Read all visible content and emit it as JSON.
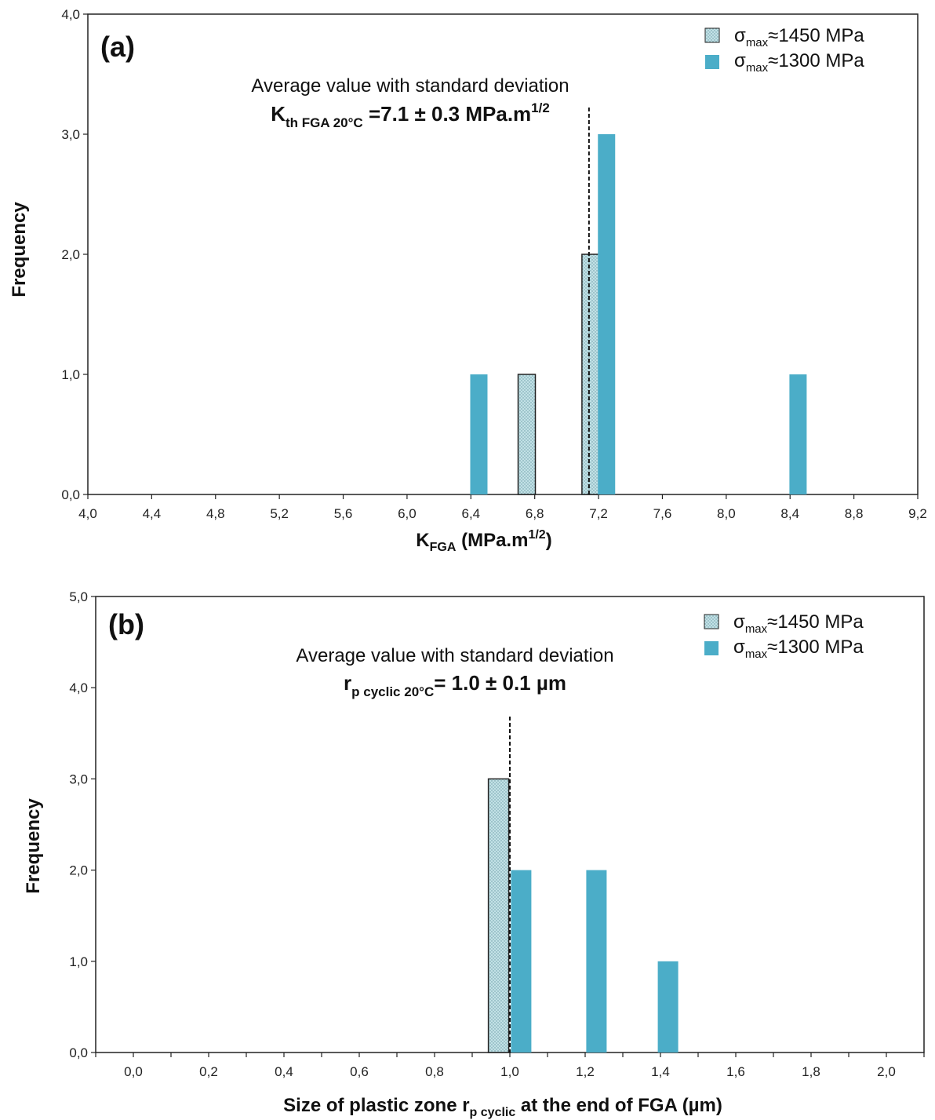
{
  "colors": {
    "series_1450_fill": "#bcdde3",
    "series_1300_fill": "#4badc8",
    "frame": "#222222",
    "mean_line": "#111111"
  },
  "chart_data": [
    {
      "type": "bar",
      "panel_label": "(a)",
      "xlabel": {
        "main": "K",
        "sub": "FGA",
        "rest": " (MPa.m",
        "sup": "1/2",
        "end": ")"
      },
      "ylabel": "Frequency",
      "xlim": [
        4.0,
        9.2
      ],
      "ylim": [
        0.0,
        4.0
      ],
      "x_ticks": [
        "4,0",
        "4,4",
        "4,8",
        "5,2",
        "5,6",
        "6,0",
        "6,4",
        "6,8",
        "7,2",
        "7,6",
        "8,0",
        "8,4",
        "8,8",
        "9,2"
      ],
      "y_ticks": [
        "0,0",
        "1,0",
        "2,0",
        "3,0",
        "4,0"
      ],
      "series": [
        {
          "legend": {
            "sym": "σ",
            "sub": "max",
            "rest": "≈1450 MPa"
          },
          "pattern": "dotted",
          "points": [
            {
              "x": 6.75,
              "y": 1
            },
            {
              "x": 7.15,
              "y": 2
            }
          ]
        },
        {
          "legend": {
            "sym": "σ",
            "sub": "max",
            "rest": "≈1300 MPa"
          },
          "pattern": "solid",
          "points": [
            {
              "x": 6.45,
              "y": 1
            },
            {
              "x": 7.25,
              "y": 3
            },
            {
              "x": 8.45,
              "y": 1
            }
          ]
        }
      ],
      "mean_line_x": 7.14,
      "annotation": {
        "line1": "Average value with standard deviation",
        "main": "K",
        "sub": "th FGA 20°C",
        "rest": " =7.1 ± 0.3 MPa.m",
        "sup": "1/2"
      }
    },
    {
      "type": "bar",
      "panel_label": "(b)",
      "xlabel": {
        "main": "Size of plastic zone r",
        "sub": "p cyclic",
        "rest": "  at the end of FGA (µm)"
      },
      "ylabel": "Frequency",
      "xlim": [
        -0.1,
        2.1
      ],
      "ylim": [
        0.0,
        5.0
      ],
      "x_ticks": [
        "0,0",
        "0,2",
        "0,4",
        "0,6",
        "0,8",
        "1,0",
        "1,2",
        "1,4",
        "1,6",
        "1,8",
        "2,0"
      ],
      "y_ticks": [
        "0,0",
        "1,0",
        "2,0",
        "3,0",
        "4,0",
        "5,0"
      ],
      "series": [
        {
          "legend": {
            "sym": "σ",
            "sub": "max",
            "rest": "≈1450 MPa"
          },
          "pattern": "dotted",
          "points": [
            {
              "x": 0.97,
              "y": 3
            }
          ]
        },
        {
          "legend": {
            "sym": "σ",
            "sub": "max",
            "rest": "≈1300 MPa"
          },
          "pattern": "solid",
          "points": [
            {
              "x": 1.03,
              "y": 2
            },
            {
              "x": 1.23,
              "y": 2
            },
            {
              "x": 1.42,
              "y": 1
            }
          ]
        }
      ],
      "mean_line_x": 1.0,
      "annotation": {
        "line1": "Average value with standard deviation",
        "main": "r",
        "sub": "p cyclic 20°C",
        "rest": "= 1.0 ± 0.1 µm"
      }
    }
  ]
}
